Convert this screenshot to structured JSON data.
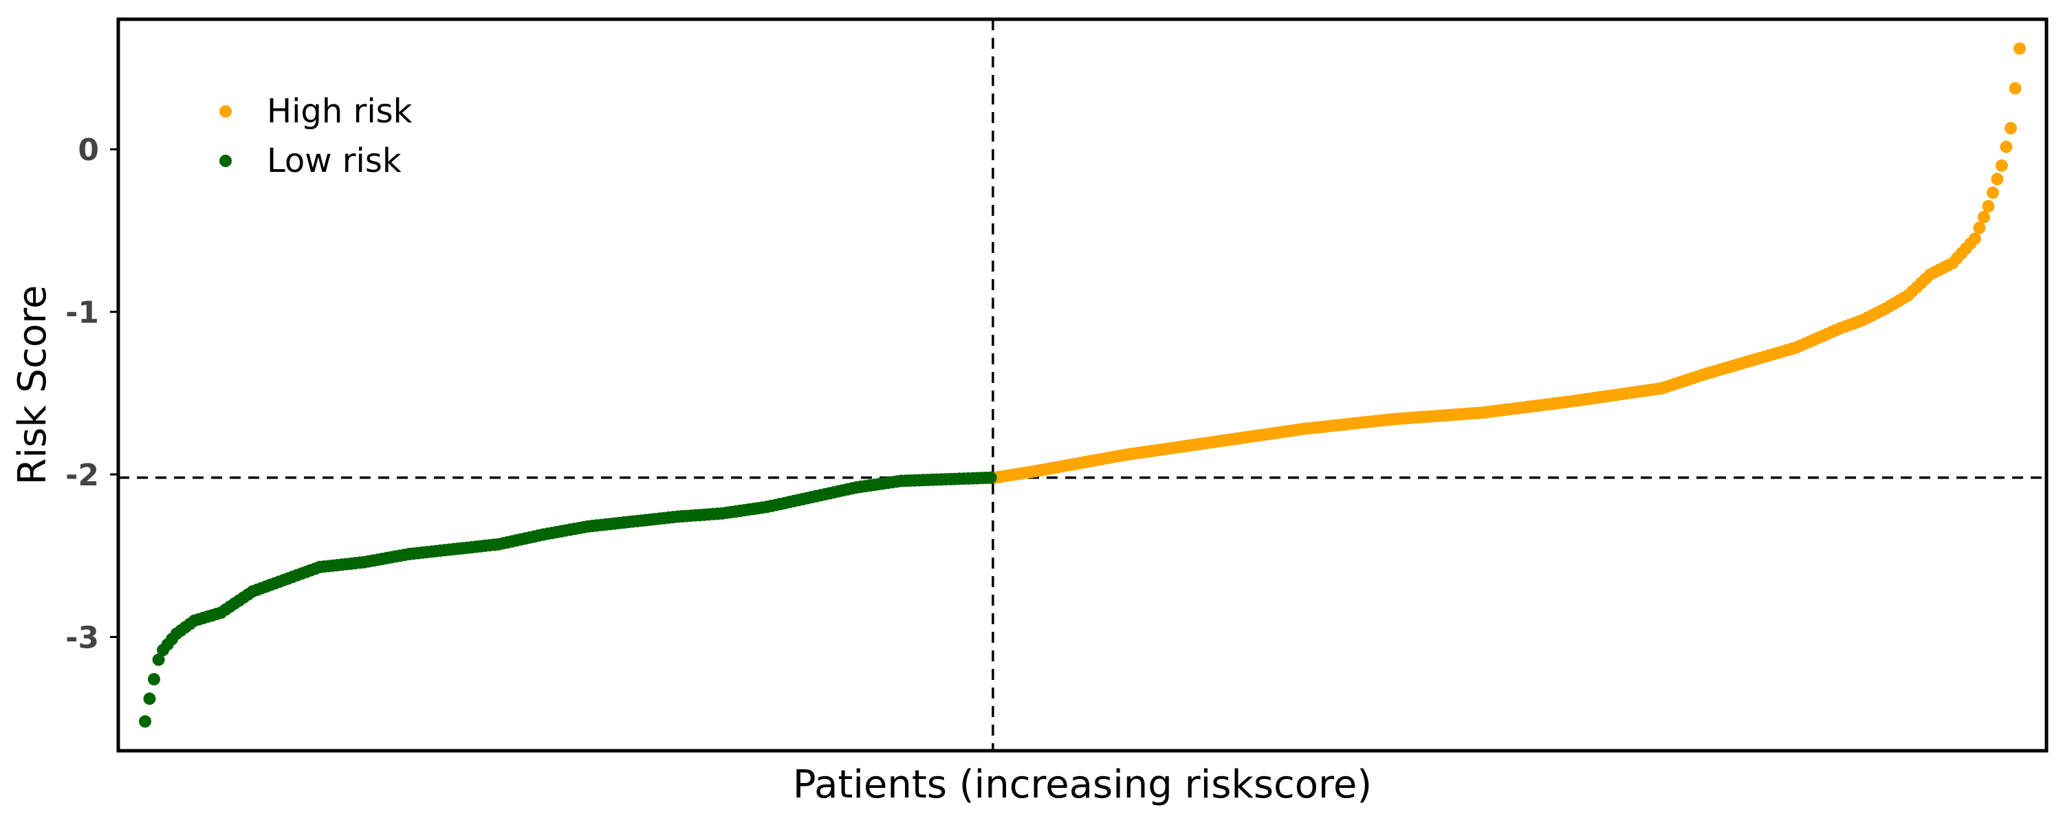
{
  "chart_data": {
    "type": "scatter",
    "xlabel": "Patients (increasing riskscore)",
    "ylabel": "Risk Score",
    "ylim": [
      -3.7,
      0.8
    ],
    "yticks": [
      {
        "value": 0,
        "label": "0"
      },
      {
        "value": -1,
        "label": "-1"
      },
      {
        "value": -2,
        "label": "-2"
      },
      {
        "value": -3,
        "label": "-3"
      }
    ],
    "xticks_shown": false,
    "grid": false,
    "legend_position": "top-left",
    "n_patients": 420,
    "cutoff_patient_index": 190,
    "cutoff_risk_score": -2.02,
    "series": [
      {
        "name": "High risk",
        "color": "#FFA500",
        "x_range": [
          191,
          420
        ],
        "curve_x": [
          191,
          200,
          220,
          240,
          260,
          280,
          300,
          320,
          340,
          350,
          360,
          370,
          380,
          385,
          390,
          395,
          400,
          405,
          410,
          413,
          416,
          418,
          420
        ],
        "curve_y": [
          -2.02,
          -1.98,
          -1.88,
          -1.8,
          -1.72,
          -1.66,
          -1.62,
          -1.55,
          -1.47,
          -1.38,
          -1.3,
          -1.22,
          -1.1,
          -1.05,
          -0.98,
          -0.9,
          -0.77,
          -0.7,
          -0.55,
          -0.35,
          -0.1,
          0.13,
          0.62
        ]
      },
      {
        "name": "Low risk",
        "color": "#006400",
        "x_range": [
          1,
          190
        ],
        "curve_x": [
          1,
          2,
          4,
          5,
          8,
          12,
          18,
          25,
          30,
          40,
          50,
          60,
          70,
          80,
          90,
          100,
          110,
          120,
          130,
          140,
          150,
          160,
          170,
          180,
          190
        ],
        "curve_y": [
          -3.52,
          -3.38,
          -3.14,
          -3.08,
          -2.98,
          -2.9,
          -2.85,
          -2.72,
          -2.67,
          -2.57,
          -2.54,
          -2.49,
          -2.46,
          -2.43,
          -2.37,
          -2.32,
          -2.29,
          -2.26,
          -2.24,
          -2.2,
          -2.14,
          -2.08,
          -2.04,
          -2.03,
          -2.02
        ]
      }
    ]
  }
}
